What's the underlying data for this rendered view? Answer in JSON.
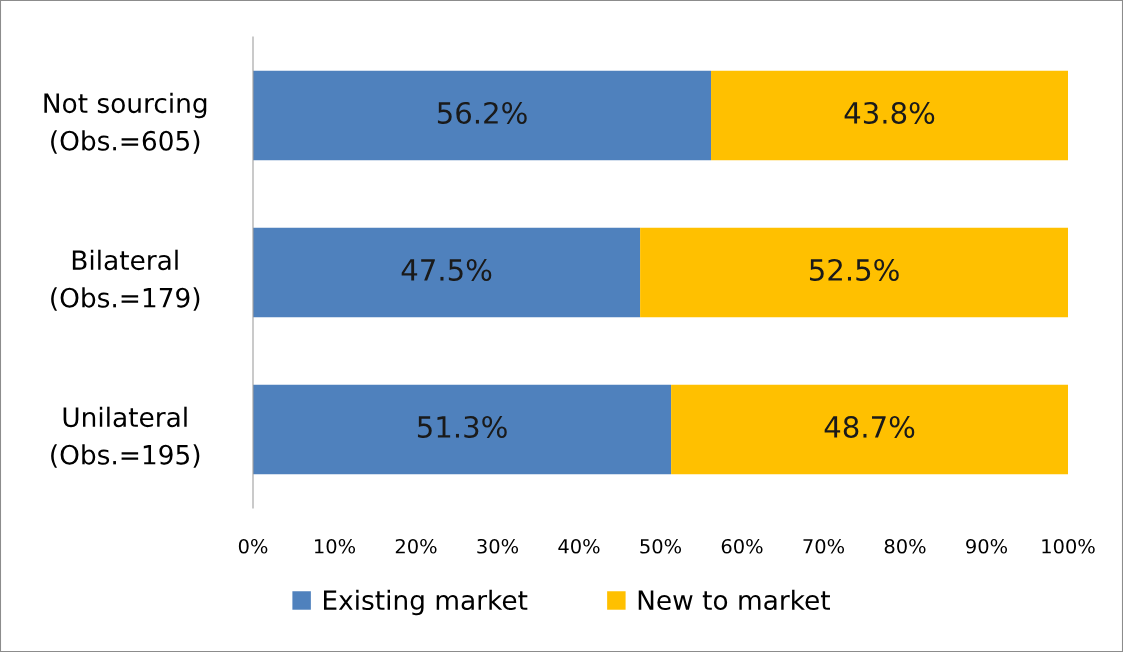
{
  "chart_data": {
    "type": "bar",
    "orientation": "horizontal",
    "stacked": true,
    "categories": [
      "Not sourcing\n(Obs.=605)",
      "Bilateral\n(Obs.=179)",
      "Unilateral\n(Obs.=195)"
    ],
    "series": [
      {
        "name": "Existing market",
        "color": "#4f81bd",
        "values": [
          56.2,
          47.5,
          51.3
        ],
        "value_labels": [
          "56.2%",
          "47.5%",
          "51.3%"
        ]
      },
      {
        "name": "New to market",
        "color": "#ffc000",
        "values": [
          43.8,
          52.5,
          48.7
        ],
        "value_labels": [
          "43.8%",
          "52.5%",
          "48.7%"
        ]
      }
    ],
    "xlim": [
      0,
      100
    ],
    "xticks": [
      {
        "value": 0,
        "label": "0%"
      },
      {
        "value": 10,
        "label": "10%"
      },
      {
        "value": 20,
        "label": "20%"
      },
      {
        "value": 30,
        "label": "30%"
      },
      {
        "value": 40,
        "label": "40%"
      },
      {
        "value": 50,
        "label": "50%"
      },
      {
        "value": 60,
        "label": "60%"
      },
      {
        "value": 70,
        "label": "70%"
      },
      {
        "value": 80,
        "label": "80%"
      },
      {
        "value": 90,
        "label": "90%"
      },
      {
        "value": 100,
        "label": "100%"
      }
    ],
    "grid": false,
    "legend": "bottom"
  }
}
